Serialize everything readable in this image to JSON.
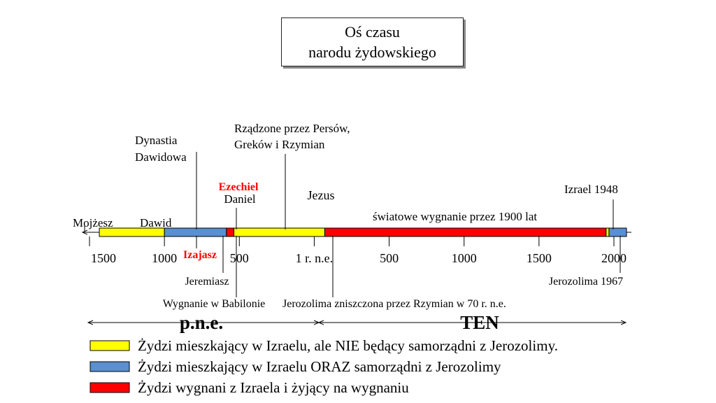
{
  "title": {
    "line1": "Oś czasu",
    "line2": "narodu żydowskiego"
  },
  "colors": {
    "yellow": "#ffff00",
    "blue": "#5a8fd0",
    "red": "#ff0000",
    "highlight": "#ff0000"
  },
  "segments": [
    {
      "color": "yellow",
      "from": -1500,
      "to": -1000
    },
    {
      "color": "blue",
      "from": -1000,
      "to": -586
    },
    {
      "color": "red",
      "from": -586,
      "to": -536
    },
    {
      "color": "yellow",
      "from": -536,
      "to": 70
    },
    {
      "color": "red",
      "from": 70,
      "to": 1948
    },
    {
      "color": "yellow",
      "from": 1948,
      "to": 1967
    },
    {
      "color": "blue",
      "from": 1967,
      "to": 2020
    }
  ],
  "ticks": [
    {
      "label": "1500",
      "year": -1500
    },
    {
      "label": "1000",
      "year": -1000
    },
    {
      "label": "500",
      "year": -500
    },
    {
      "label": "1 r. n.e.",
      "year": 0
    },
    {
      "label": "500",
      "year": 500
    },
    {
      "label": "1000",
      "year": 1000
    },
    {
      "label": "1500",
      "year": 1500
    },
    {
      "label": "2000",
      "year": 2000
    }
  ],
  "labels": {
    "mojzesz": "Mojżesz",
    "dawid": "Dawid",
    "dynastia1": "Dynastia",
    "dynastia2": "Dawidowa",
    "ezechiel": "Ezechiel",
    "daniel": "Daniel",
    "rzadzone1": "Rządzone przez Persów,",
    "rzadzone2": "Greków i Rzymian",
    "jezus": "Jezus",
    "wygnanie_swiat": "światowe wygnanie przez 1900 lat",
    "izrael1948": "Izrael 1948",
    "izajasz": "Izajasz",
    "jeremiasz": "Jeremiasz",
    "wygnanie_babilon": "Wygnanie w Babilonie",
    "jerozolima70": "Jerozolima zniszczona przez Rzymian w 70 r. n.e.",
    "jerozolima1967": "Jerozolima 1967",
    "pne": "p.n.e.",
    "ten": "TEN"
  },
  "legend": [
    {
      "color": "yellow",
      "text": "Żydzi mieszkający w Izraelu, ale NIE będący samorządni z Jerozolimy."
    },
    {
      "color": "blue",
      "text": "Żydzi mieszkający w Izraelu ORAZ samorządni z Jerozolimy"
    },
    {
      "color": "red",
      "text": "Żydzi wygnani z Izraela i żyjący na wygnaniu"
    }
  ]
}
